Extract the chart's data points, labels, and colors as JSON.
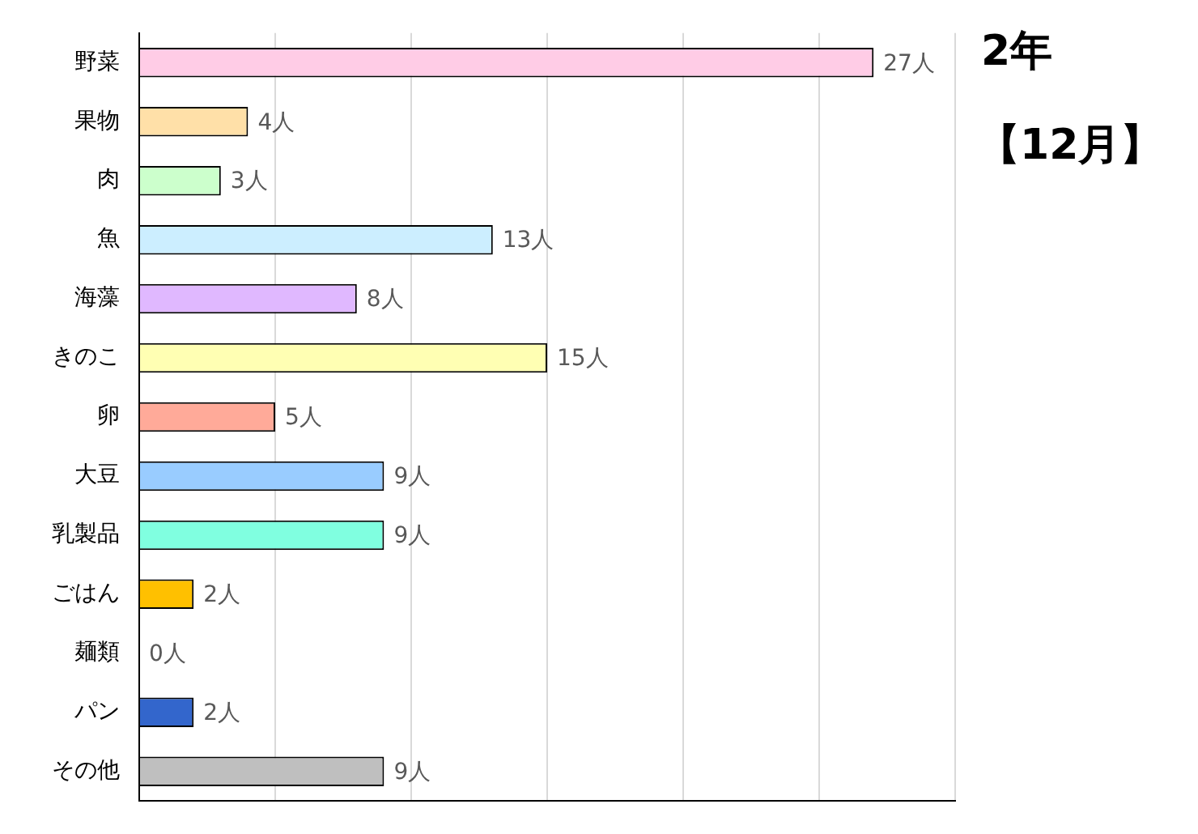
{
  "chart_data": {
    "type": "bar",
    "orientation": "horizontal",
    "title": "2年",
    "subtitle": "【12月】",
    "categories": [
      "野菜",
      "果物",
      "肉",
      "魚",
      "海藻",
      "きのこ",
      "卵",
      "大豆",
      "乳製品",
      "ごはん",
      "麺類",
      "パン",
      "その他"
    ],
    "values": [
      27,
      4,
      3,
      13,
      8,
      15,
      5,
      9,
      9,
      2,
      0,
      2,
      9
    ],
    "value_labels": [
      "27人",
      "4人",
      "3人",
      "13人",
      "8人",
      "15人",
      "5人",
      "9人",
      "9人",
      "2人",
      "0人",
      "2人",
      "9人"
    ],
    "colors": [
      "#ffcce6",
      "#ffe0a8",
      "#ccffcc",
      "#cceeff",
      "#e0b8ff",
      "#ffffb3",
      "#ffaa99",
      "#99ccff",
      "#80ffe0",
      "#ffc000",
      "#ffffff",
      "#3366cc",
      "#bfbfbf"
    ],
    "tick_labels": "y",
    "grid": "x",
    "legend": false
  }
}
